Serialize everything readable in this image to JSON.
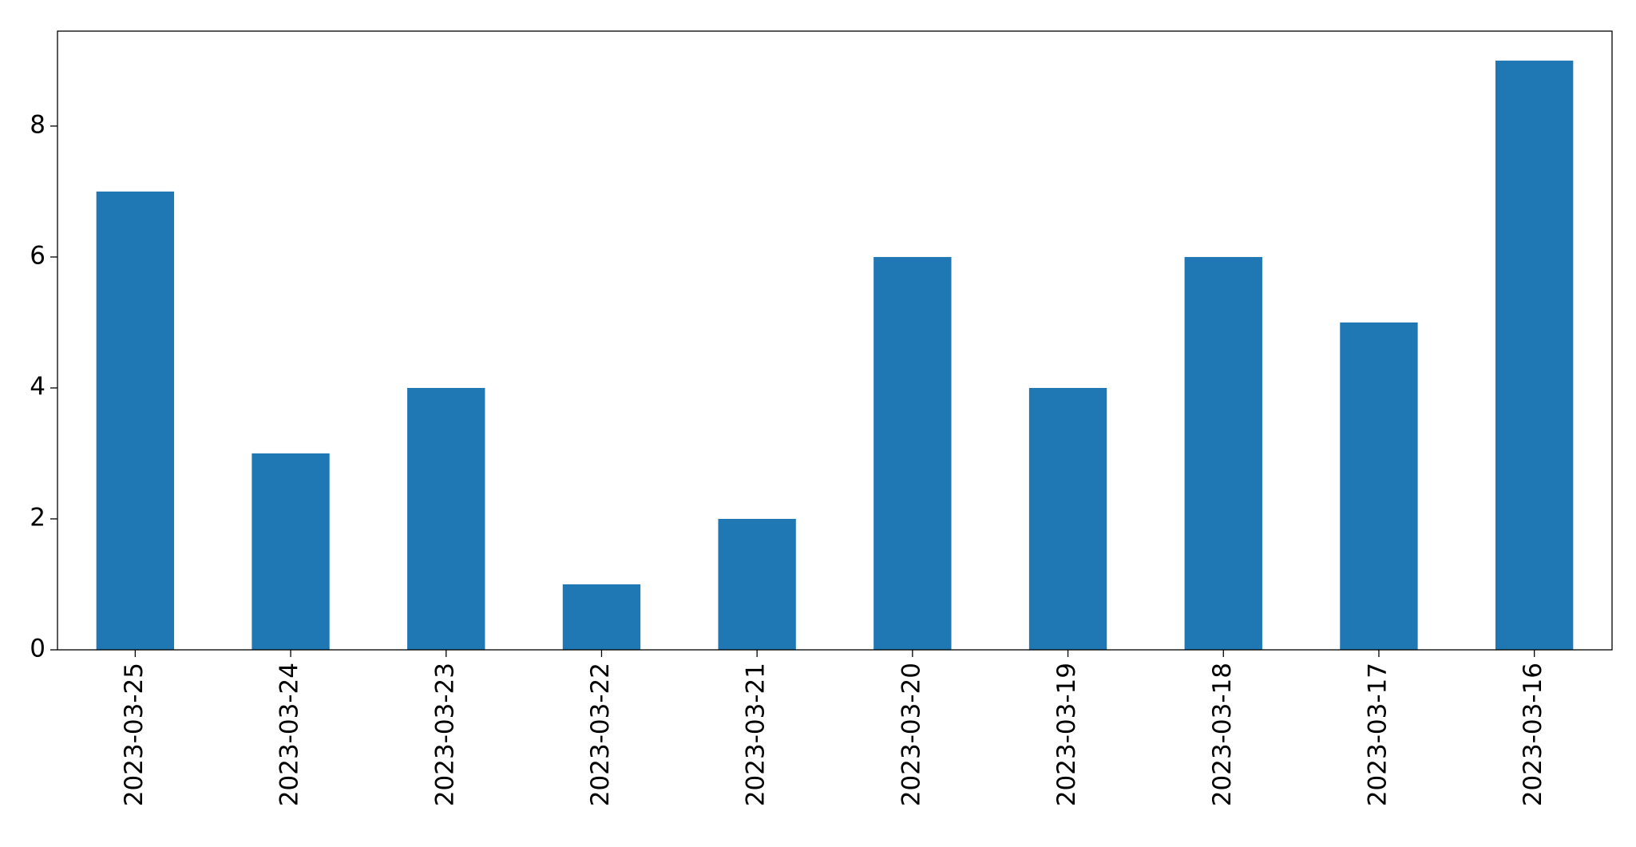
{
  "chart_data": {
    "type": "bar",
    "categories": [
      "2023-03-25",
      "2023-03-24",
      "2023-03-23",
      "2023-03-22",
      "2023-03-21",
      "2023-03-20",
      "2023-03-19",
      "2023-03-18",
      "2023-03-17",
      "2023-03-16"
    ],
    "values": [
      7,
      3,
      4,
      1,
      2,
      6,
      4,
      6,
      5,
      9
    ],
    "color": "#1f77b4",
    "ylim": [
      0,
      9.45
    ],
    "yticks": [
      0,
      2,
      4,
      6,
      8
    ],
    "grid": false
  }
}
